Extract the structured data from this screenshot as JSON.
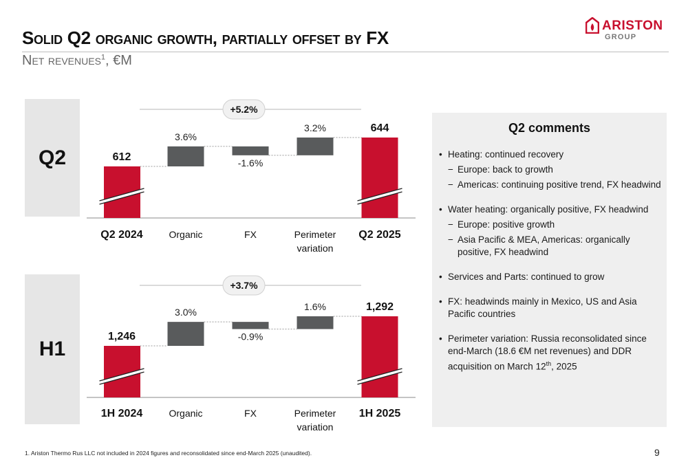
{
  "header": {
    "title": "Solid Q2 organic growth, partially offset by FX",
    "subtitle": "Net revenues",
    "subtitle_sup": "1",
    "subtitle_unit": ", €M"
  },
  "logo": {
    "name": "ARISTON",
    "sub": "GROUP",
    "color": "#c8102e"
  },
  "colors": {
    "total_bar": "#c8102e",
    "delta_bar": "#595b5c",
    "axis": "#8a8a8a",
    "panel": "#e6e6e6"
  },
  "chart_data": [
    {
      "type": "bar",
      "subtype": "waterfall",
      "panel_label": "Q2",
      "categories": [
        "Q2 2024",
        "Organic",
        "FX",
        "Perimeter",
        "Q2 2025"
      ],
      "category_second_line": [
        "",
        "",
        "",
        "variation",
        ""
      ],
      "category_bold": [
        true,
        false,
        false,
        false,
        true
      ],
      "start_value": 612,
      "start_label": "612",
      "deltas_pct": [
        3.6,
        -1.6,
        3.2
      ],
      "delta_labels": [
        "3.6%",
        "-1.6%",
        "3.2%"
      ],
      "end_value": 644,
      "end_label": "644",
      "growth_label": "+5.2%",
      "axis_break": true
    },
    {
      "type": "bar",
      "subtype": "waterfall",
      "panel_label": "H1",
      "categories": [
        "1H 2024",
        "Organic",
        "FX",
        "Perimeter",
        "1H 2025"
      ],
      "category_second_line": [
        "",
        "",
        "",
        "variation",
        ""
      ],
      "category_bold": [
        true,
        false,
        false,
        false,
        true
      ],
      "start_value": 1246,
      "start_label": "1,246",
      "deltas_pct": [
        3.0,
        -0.9,
        1.6
      ],
      "delta_labels": [
        "3.0%",
        "-0.9%",
        "1.6%"
      ],
      "end_value": 1292,
      "end_label": "1,292",
      "growth_label": "+3.7%",
      "axis_break": true
    }
  ],
  "comments": {
    "title": "Q2 comments",
    "items": [
      {
        "text": "Heating: continued recovery",
        "subs": [
          "Europe: back to growth",
          "Americas: continuing positive trend, FX headwind"
        ]
      },
      {
        "text": "Water heating: organically positive, FX headwind",
        "subs": [
          "Europe: positive growth",
          "Asia Pacific & MEA, Americas: organically positive, FX headwind"
        ]
      },
      {
        "text": "Services and Parts: continued to grow",
        "subs": []
      },
      {
        "text": "FX: headwinds mainly in Mexico, US and Asia Pacific countries",
        "subs": []
      },
      {
        "text": "Perimeter variation: Russia reconsolidated since end-March (18.6 €M net revenues) and DDR acquisition on March 12th, 2025",
        "subs": []
      }
    ]
  },
  "footnote": "1. Ariston Thermo Rus LLC not included in 2024 figures and reconsolidated since end-March 2025 (unaudited).",
  "page_number": "9"
}
